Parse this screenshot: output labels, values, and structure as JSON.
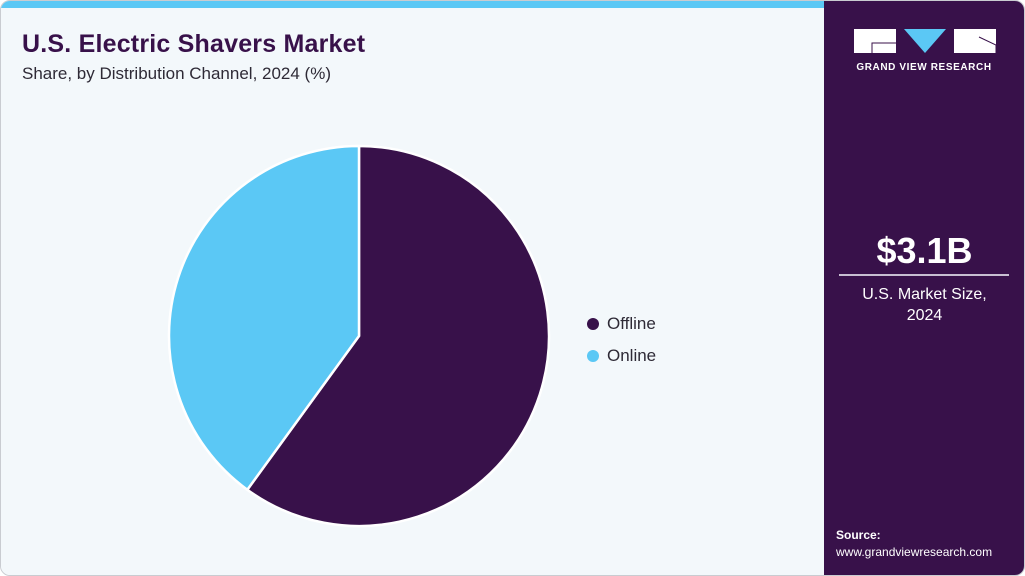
{
  "header": {
    "title": "U.S. Electric Shavers Market",
    "subtitle": "Share, by Distribution Channel, 2024 (%)"
  },
  "colors": {
    "offline": "#38114a",
    "online": "#5bc8f5",
    "background": "#f3f8fb",
    "sidebar": "#38114a",
    "accent_bar": "#5bc8f5"
  },
  "legend": {
    "items": [
      {
        "label": "Offline",
        "color": "#38114a"
      },
      {
        "label": "Online",
        "color": "#5bc8f5"
      }
    ]
  },
  "sidebar": {
    "logo_text": "GRAND VIEW RESEARCH",
    "kpi_value": "$3.1B",
    "kpi_label_line1": "U.S. Market Size,",
    "kpi_label_line2": "2024",
    "source_label": "Source:",
    "source_url": "www.grandviewresearch.com"
  },
  "chart_data": {
    "type": "pie",
    "title": "U.S. Electric Shavers Market",
    "subtitle": "Share, by Distribution Channel, 2024 (%)",
    "categories": [
      "Offline",
      "Online"
    ],
    "values": [
      60,
      40
    ],
    "colors": [
      "#38114a",
      "#5bc8f5"
    ],
    "start_angle_deg": 0,
    "direction": "clockwise",
    "legend_position": "right",
    "data_labels": false
  }
}
